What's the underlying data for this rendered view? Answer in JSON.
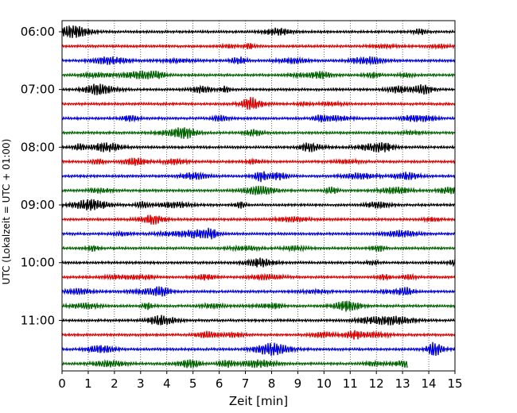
{
  "chart_data": {
    "type": "line",
    "title": "",
    "xlabel": "Zeit  [min]",
    "ylabel": "UTC (Lokalzeit = UTC + 01:00)",
    "xlim": [
      0,
      15
    ],
    "x_ticks": [
      "0",
      "1",
      "2",
      "3",
      "4",
      "5",
      "6",
      "7",
      "8",
      "9",
      "10",
      "11",
      "12",
      "13",
      "14",
      "15"
    ],
    "y_ticks": [
      "06:00",
      "07:00",
      "08:00",
      "09:00",
      "10:00",
      "11:00"
    ],
    "grid": "vertical dotted lines at each minute",
    "trace_interval_minutes": 15,
    "first_trace_utc": "06:00",
    "trace_count": 24,
    "trace_colors": [
      "#000000",
      "#e00000",
      "#0000e0",
      "#006400"
    ],
    "last_trace_end_minute": 13.2
  }
}
